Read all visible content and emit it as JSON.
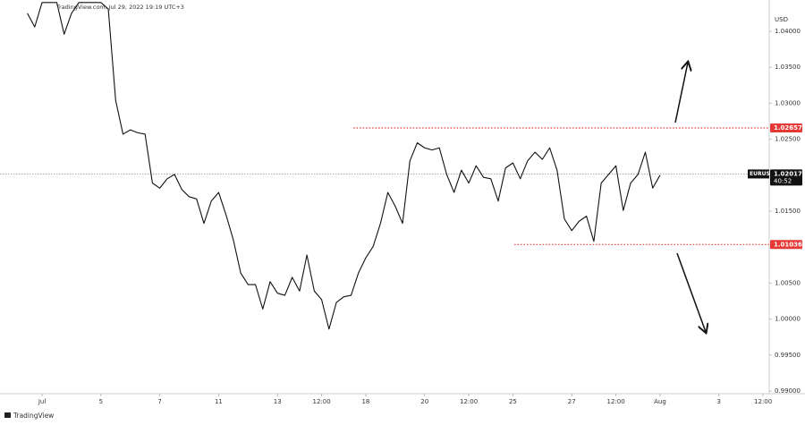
{
  "header": "TradingView.com, Jul 29, 2022 19:19 UTC+3",
  "footer": "TradingView",
  "chart_data": {
    "type": "line",
    "axis_unit": "USD",
    "x": [
      -0.5,
      -0.25,
      0,
      0.25,
      0.5,
      0.75,
      1,
      1.25,
      1.5,
      1.75,
      2,
      2.25,
      2.5,
      2.75,
      3,
      3.25,
      3.5,
      3.75,
      4,
      4.25,
      4.5,
      4.75,
      5,
      5.25,
      5.5,
      5.75,
      6,
      6.25,
      6.5,
      6.75,
      7,
      7.25,
      7.5,
      7.75,
      8,
      8.25,
      8.5,
      8.75,
      9,
      9.25,
      9.5,
      9.75,
      10,
      10.25,
      10.5,
      10.75,
      11,
      11.25,
      11.5,
      11.75,
      12,
      12.25,
      12.5,
      12.75,
      13,
      13.25,
      13.5,
      13.75,
      14,
      14.25,
      14.5,
      14.75,
      15,
      15.25,
      15.5,
      15.75,
      16,
      16.25,
      16.5,
      16.75,
      17,
      17.25,
      17.5,
      17.75,
      18,
      18.25,
      18.5,
      18.75,
      19,
      19.25,
      19.5,
      19.75,
      20,
      20.25,
      20.5,
      20.75,
      21
    ],
    "series": [
      {
        "name": "EURUSD",
        "color": "#111111",
        "values": [
          1.0425,
          1.0406,
          1.044,
          1.044,
          1.044,
          1.0396,
          1.0425,
          1.044,
          1.044,
          1.044,
          1.044,
          1.0431,
          1.0304,
          1.0257,
          1.0263,
          1.0259,
          1.0257,
          1.0189,
          1.0182,
          1.0195,
          1.0201,
          1.018,
          1.017,
          1.0167,
          1.0133,
          1.0164,
          1.0176,
          1.0145,
          1.011,
          1.0064,
          1.0048,
          1.0048,
          1.0014,
          1.0052,
          1.0036,
          1.0033,
          1.0058,
          1.0039,
          1.0089,
          1.0039,
          1.0027,
          0.9986,
          1.0023,
          1.0031,
          1.0033,
          1.0064,
          1.0085,
          1.0101,
          1.0133,
          1.0176,
          1.0157,
          1.0133,
          1.022,
          1.0245,
          1.0238,
          1.0235,
          1.0238,
          1.0201,
          1.0176,
          1.0207,
          1.0189,
          1.0213,
          1.0197,
          1.0195,
          1.0164,
          1.021,
          1.0217,
          1.0195,
          1.022,
          1.0232,
          1.0222,
          1.0238,
          1.0207,
          1.0139,
          1.0123,
          1.0136,
          1.0143,
          1.0108,
          1.0189,
          1.0201,
          1.0213,
          1.0151,
          1.0189,
          1.0201,
          1.0232,
          1.0182,
          1.02
        ]
      }
    ],
    "xlim": [
      -1.43,
      24.71
    ],
    "xticks": [
      {
        "value": 0,
        "label": "Jul"
      },
      {
        "value": 2,
        "label": "5"
      },
      {
        "value": 4,
        "label": "7"
      },
      {
        "value": 6,
        "label": "11"
      },
      {
        "value": 8,
        "label": "13"
      },
      {
        "value": 9.5,
        "label": "12:00"
      },
      {
        "value": 11,
        "label": "18"
      },
      {
        "value": 13,
        "label": "20"
      },
      {
        "value": 14.5,
        "label": "12:00"
      },
      {
        "value": 16,
        "label": "25"
      },
      {
        "value": 18,
        "label": "27"
      },
      {
        "value": 19.5,
        "label": "12:00"
      },
      {
        "value": 21,
        "label": "Aug"
      },
      {
        "value": 23,
        "label": "3"
      },
      {
        "value": 24.5,
        "label": "12:00"
      }
    ],
    "ylim": [
      0.98963,
      1.04435
    ],
    "yticks": [
      {
        "value": 0.99,
        "label": "0.99000"
      },
      {
        "value": 0.995,
        "label": "0.99500"
      },
      {
        "value": 1.0,
        "label": "1.00000"
      },
      {
        "value": 1.005,
        "label": "1.00500"
      },
      {
        "value": 1.01,
        "label": "1.01000"
      },
      {
        "value": 1.015,
        "label": "1.01500"
      },
      {
        "value": 1.02,
        "label": "1.02000"
      },
      {
        "value": 1.025,
        "label": "1.02500"
      },
      {
        "value": 1.03,
        "label": "1.03000"
      },
      {
        "value": 1.035,
        "label": "1.03500"
      },
      {
        "value": 1.04,
        "label": "1.04000"
      }
    ],
    "levels": [
      {
        "value": 1.02657,
        "color": "#e53935",
        "start": 10.58
      },
      {
        "value": 1.01036,
        "color": "#e53935",
        "start": 16.05
      }
    ],
    "last_price": {
      "symbol": "EURUSD",
      "value": 1.02017,
      "countdown": "40:52",
      "color": "#9e9e9e"
    }
  }
}
